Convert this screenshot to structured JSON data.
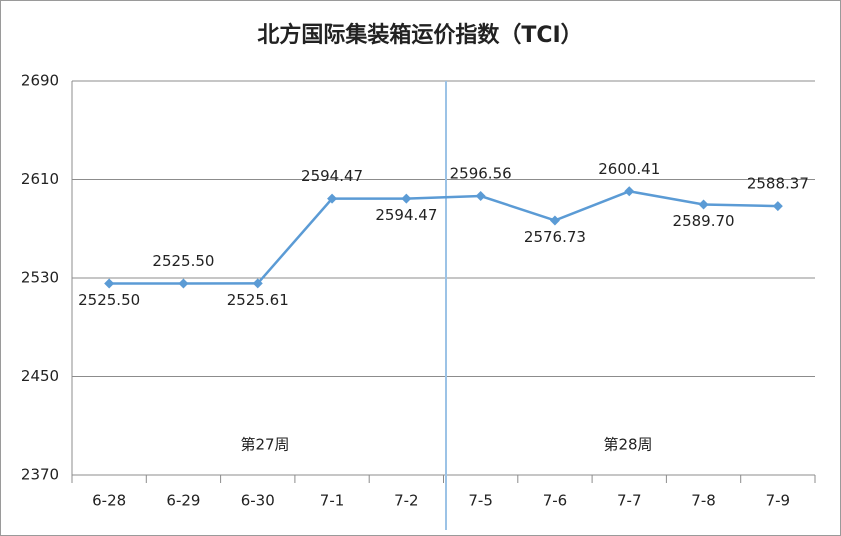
{
  "chart_data": {
    "type": "line",
    "title": "北方国际集装箱运价指数（TCI）",
    "categories": [
      "6-28",
      "6-29",
      "6-30",
      "7-1",
      "7-2",
      "7-5",
      "7-6",
      "7-7",
      "7-8",
      "7-9"
    ],
    "series": [
      {
        "name": "TCI",
        "color": "#5b9bd5",
        "values": [
          2525.5,
          2525.5,
          2525.61,
          2594.47,
          2594.47,
          2596.56,
          2576.73,
          2600.41,
          2589.7,
          2588.37
        ],
        "value_labels": [
          "2525.50",
          "2525.50",
          "2525.61",
          "2594.47",
          "2594.47",
          "2596.56",
          "2576.73",
          "2600.41",
          "2589.70",
          "2588.37"
        ]
      }
    ],
    "annotations": [
      "第27周",
      "第28周"
    ],
    "ylim": [
      2370,
      2690
    ],
    "yticks": [
      2370,
      2450,
      2530,
      2610,
      2690
    ],
    "grid": true
  }
}
